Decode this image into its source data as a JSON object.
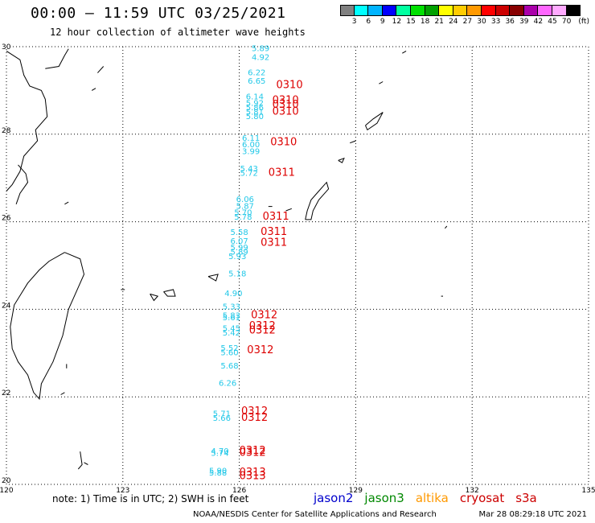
{
  "header": {
    "title": "00:00 – 11:59 UTC 03/25/2021",
    "subtitle": "12 hour collection of altimeter wave heights"
  },
  "colorbar": {
    "colors": [
      "#808080",
      "#00ffff",
      "#00b4ff",
      "#0000ff",
      "#00ffa0",
      "#00e000",
      "#00a000",
      "#ffff00",
      "#ffcc00",
      "#ff9900",
      "#ff0000",
      "#cc0000",
      "#880000",
      "#aa00aa",
      "#ff66ff",
      "#ffaaff",
      "#000000"
    ],
    "labels": [
      "3",
      "6",
      "9",
      "12",
      "15",
      "18",
      "21",
      "24",
      "27",
      "30",
      "33",
      "36",
      "39",
      "42",
      "45",
      "70"
    ],
    "unit": "(ft)"
  },
  "axes": {
    "lon_range": [
      120,
      135
    ],
    "lat_range": [
      20,
      30
    ],
    "x_ticks": [
      "120",
      "123",
      "126",
      "129",
      "132",
      "135"
    ],
    "y_ticks": [
      "30",
      "28",
      "26",
      "24",
      "22",
      "20"
    ]
  },
  "observations": [
    {
      "lat": 29.9,
      "lon": 126.55,
      "swh": "5.89"
    },
    {
      "lat": 29.7,
      "lon": 126.55,
      "swh": "4.92"
    },
    {
      "lat": 29.35,
      "lon": 126.45,
      "swh": "6.22"
    },
    {
      "lat": 29.15,
      "lon": 126.45,
      "swh": "6.65"
    },
    {
      "lat": 28.8,
      "lon": 126.4,
      "swh": "6.14"
    },
    {
      "lat": 28.65,
      "lon": 126.4,
      "swh": "5.92"
    },
    {
      "lat": 28.55,
      "lon": 126.4,
      "swh": "5.86"
    },
    {
      "lat": 28.45,
      "lon": 126.4,
      "swh": "5.81"
    },
    {
      "lat": 28.35,
      "lon": 126.4,
      "swh": "5.80"
    },
    {
      "lat": 27.85,
      "lon": 126.3,
      "swh": "6.11"
    },
    {
      "lat": 27.7,
      "lon": 126.3,
      "swh": "6.00"
    },
    {
      "lat": 27.55,
      "lon": 126.3,
      "swh": "3.99"
    },
    {
      "lat": 27.15,
      "lon": 126.25,
      "swh": "5.43"
    },
    {
      "lat": 27.05,
      "lon": 126.25,
      "swh": "5.72"
    },
    {
      "lat": 26.45,
      "lon": 126.15,
      "swh": "6.06"
    },
    {
      "lat": 26.3,
      "lon": 126.15,
      "swh": "5.87"
    },
    {
      "lat": 26.15,
      "lon": 126.1,
      "swh": "5.70"
    },
    {
      "lat": 26.05,
      "lon": 126.1,
      "swh": "5.78"
    },
    {
      "lat": 25.7,
      "lon": 126.0,
      "swh": "5.58"
    },
    {
      "lat": 25.5,
      "lon": 126.0,
      "swh": "6.07"
    },
    {
      "lat": 25.35,
      "lon": 126.0,
      "swh": "5.99"
    },
    {
      "lat": 25.25,
      "lon": 126.0,
      "swh": "5.89"
    },
    {
      "lat": 25.15,
      "lon": 125.95,
      "swh": "5.93"
    },
    {
      "lat": 24.75,
      "lon": 125.95,
      "swh": "5.18"
    },
    {
      "lat": 24.3,
      "lon": 125.85,
      "swh": "4.90"
    },
    {
      "lat": 24.0,
      "lon": 125.8,
      "swh": "5.33"
    },
    {
      "lat": 23.8,
      "lon": 125.8,
      "swh": "5.83"
    },
    {
      "lat": 23.75,
      "lon": 125.8,
      "swh": "5.61"
    },
    {
      "lat": 23.5,
      "lon": 125.8,
      "swh": "5.45"
    },
    {
      "lat": 23.4,
      "lon": 125.8,
      "swh": "5.42"
    },
    {
      "lat": 23.05,
      "lon": 125.75,
      "swh": "5.52"
    },
    {
      "lat": 22.95,
      "lon": 125.75,
      "swh": "5.60"
    },
    {
      "lat": 22.65,
      "lon": 125.75,
      "swh": "5.68"
    },
    {
      "lat": 22.25,
      "lon": 125.7,
      "swh": "6.26"
    },
    {
      "lat": 21.55,
      "lon": 125.55,
      "swh": "5.71"
    },
    {
      "lat": 21.45,
      "lon": 125.55,
      "swh": "5.66"
    },
    {
      "lat": 20.7,
      "lon": 125.5,
      "swh": "4.70"
    },
    {
      "lat": 20.65,
      "lon": 125.5,
      "swh": "5.74"
    },
    {
      "lat": 20.25,
      "lon": 125.45,
      "swh": "5.90"
    },
    {
      "lat": 20.2,
      "lon": 125.45,
      "swh": "5.88"
    }
  ],
  "passes": [
    {
      "lat": 29.05,
      "lon": 126.95,
      "label": "0310"
    },
    {
      "lat": 28.7,
      "lon": 126.85,
      "label": "0310"
    },
    {
      "lat": 28.6,
      "lon": 126.85,
      "label": "0310"
    },
    {
      "lat": 28.45,
      "lon": 126.85,
      "label": "0310"
    },
    {
      "lat": 27.75,
      "lon": 126.8,
      "label": "0310"
    },
    {
      "lat": 27.05,
      "lon": 126.75,
      "label": "0311"
    },
    {
      "lat": 26.05,
      "lon": 126.6,
      "label": "0311"
    },
    {
      "lat": 25.7,
      "lon": 126.55,
      "label": "0311"
    },
    {
      "lat": 25.45,
      "lon": 126.55,
      "label": "0311"
    },
    {
      "lat": 23.8,
      "lon": 126.3,
      "label": "0312"
    },
    {
      "lat": 23.55,
      "lon": 126.25,
      "label": "0312"
    },
    {
      "lat": 23.45,
      "lon": 126.25,
      "label": "0312"
    },
    {
      "lat": 23.0,
      "lon": 126.2,
      "label": "0312"
    },
    {
      "lat": 21.6,
      "lon": 126.05,
      "label": "0312"
    },
    {
      "lat": 21.45,
      "lon": 126.05,
      "label": "0312"
    },
    {
      "lat": 20.7,
      "lon": 126.0,
      "label": "0312"
    },
    {
      "lat": 20.65,
      "lon": 126.0,
      "label": "0312"
    },
    {
      "lat": 20.2,
      "lon": 126.0,
      "label": "0313"
    },
    {
      "lat": 20.12,
      "lon": 126.0,
      "label": "0313"
    }
  ],
  "footer": {
    "note": "note: 1) Time is in UTC; 2) SWH is in feet",
    "satellites": [
      {
        "name": "jason2",
        "color": "#0000cc"
      },
      {
        "name": "jason3",
        "color": "#008800"
      },
      {
        "name": "altika",
        "color": "#ff9900"
      },
      {
        "name": "cryosat",
        "color": "#cc0000"
      },
      {
        "name": "s3a",
        "color": "#cc0000"
      }
    ],
    "credit_left": "NOAA/NESDIS Center for Satellite Applications and Research",
    "credit_right": "Mar 28 08:29:18 UTC 2021"
  },
  "colors": {
    "observation": "#22c8e8",
    "pass": "#dd0000"
  }
}
